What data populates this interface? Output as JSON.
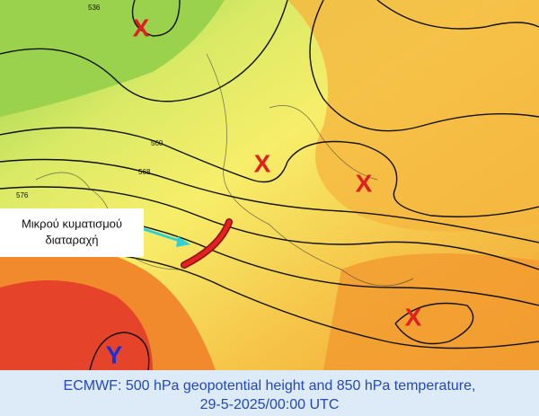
{
  "map": {
    "markers": [
      {
        "label": "X",
        "kind": "high"
      },
      {
        "label": "X",
        "kind": "high"
      },
      {
        "label": "X",
        "kind": "high"
      },
      {
        "label": "X",
        "kind": "high"
      },
      {
        "label": "Y",
        "kind": "low"
      }
    ],
    "contour_labels": [
      "536",
      "560",
      "568",
      "576"
    ],
    "annotation": [
      "Μικρού κυματισμού",
      "διαταραχή"
    ],
    "caption": [
      "ECMWF: 500 hPa geopotential height and 850 hPa temperature,",
      "29-5-2025/00:00 UTC"
    ]
  }
}
